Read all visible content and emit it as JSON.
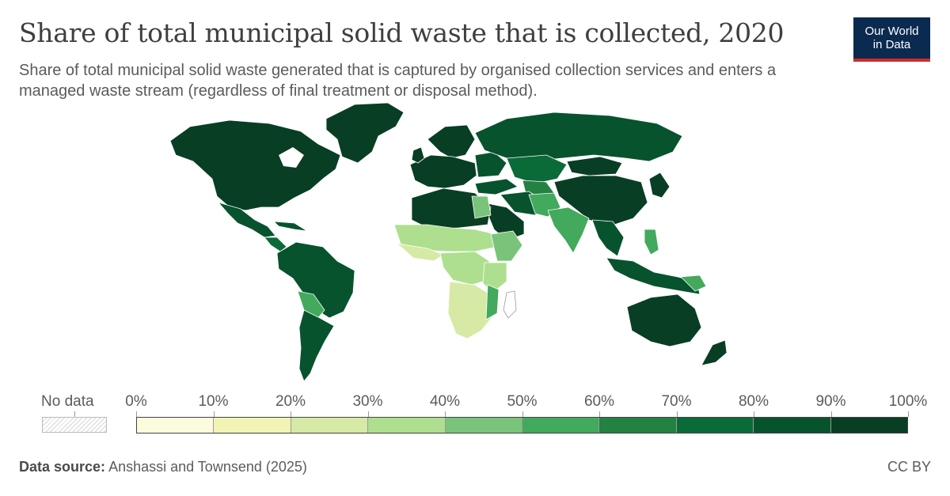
{
  "header": {
    "title": "Share of total municipal solid waste that is collected, 2020",
    "subtitle": "Share of total municipal solid waste generated that is captured by organised collection services and enters a managed waste stream (regardless of final treatment or disposal method)."
  },
  "logo": {
    "line1": "Our World",
    "line2": "in Data"
  },
  "legend": {
    "no_data_label": "No data",
    "ticks": [
      "0%",
      "10%",
      "20%",
      "30%",
      "40%",
      "50%",
      "60%",
      "70%",
      "80%",
      "90%",
      "100%"
    ],
    "colors": [
      "#fdfbde",
      "#f2f4b5",
      "#d6eaa5",
      "#addf8f",
      "#79c47a",
      "#43a95c",
      "#238141",
      "#0a6b38",
      "#07532e",
      "#083e24"
    ]
  },
  "footer": {
    "source_label": "Data source:",
    "source_text": "Anshassi and Townsend (2025)",
    "license": "CC BY"
  }
}
